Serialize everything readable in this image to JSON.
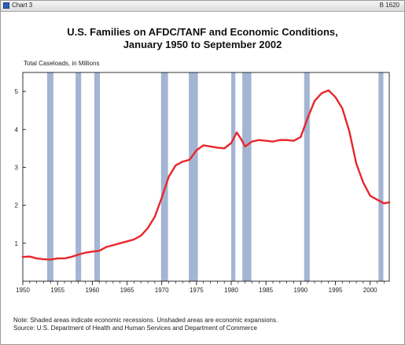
{
  "window": {
    "title": "Chart 3",
    "code": "B 1620"
  },
  "chart_data": {
    "type": "line",
    "title": "U.S. Families on AFDC/TANF and Economic Conditions,",
    "subtitle": "January 1950 to September 2002",
    "ylabel": "Total Caseloads, in Millions",
    "xlabel": "",
    "xlim": [
      1950,
      2002.75
    ],
    "ylim": [
      0,
      5.5
    ],
    "x_ticks": [
      "1950",
      "1955",
      "1960",
      "1965",
      "1970",
      "1975",
      "1980",
      "1985",
      "1990",
      "1995",
      "2000"
    ],
    "y_ticks": [
      "1",
      "2",
      "3",
      "4",
      "5"
    ],
    "grid": false,
    "line_color": "#e8262b",
    "recession_color": "#a3b5d3",
    "recessions": [
      [
        1953.5,
        1954.4
      ],
      [
        1957.6,
        1958.4
      ],
      [
        1960.3,
        1961.1
      ],
      [
        1969.9,
        1970.9
      ],
      [
        1973.9,
        1975.2
      ],
      [
        1980.0,
        1980.6
      ],
      [
        1981.6,
        1982.9
      ],
      [
        1990.5,
        1991.3
      ],
      [
        2001.2,
        2001.9
      ]
    ],
    "series": [
      {
        "values": [
          [
            1950.0,
            0.64
          ],
          [
            1951.0,
            0.65
          ],
          [
            1952.0,
            0.6
          ],
          [
            1953.0,
            0.58
          ],
          [
            1954.0,
            0.57
          ],
          [
            1955.0,
            0.6
          ],
          [
            1956.0,
            0.6
          ],
          [
            1957.0,
            0.64
          ],
          [
            1958.0,
            0.7
          ],
          [
            1959.0,
            0.75
          ],
          [
            1960.0,
            0.78
          ],
          [
            1961.0,
            0.8
          ],
          [
            1962.0,
            0.9
          ],
          [
            1963.0,
            0.95
          ],
          [
            1964.0,
            1.0
          ],
          [
            1965.0,
            1.05
          ],
          [
            1966.0,
            1.1
          ],
          [
            1967.0,
            1.2
          ],
          [
            1968.0,
            1.4
          ],
          [
            1969.0,
            1.7
          ],
          [
            1970.0,
            2.2
          ],
          [
            1971.0,
            2.75
          ],
          [
            1972.0,
            3.05
          ],
          [
            1973.0,
            3.15
          ],
          [
            1974.0,
            3.2
          ],
          [
            1975.0,
            3.45
          ],
          [
            1976.0,
            3.58
          ],
          [
            1977.0,
            3.55
          ],
          [
            1978.0,
            3.52
          ],
          [
            1979.0,
            3.5
          ],
          [
            1980.0,
            3.64
          ],
          [
            1980.8,
            3.92
          ],
          [
            1981.5,
            3.72
          ],
          [
            1982.0,
            3.55
          ],
          [
            1983.0,
            3.68
          ],
          [
            1984.0,
            3.72
          ],
          [
            1985.0,
            3.7
          ],
          [
            1986.0,
            3.68
          ],
          [
            1987.0,
            3.72
          ],
          [
            1988.0,
            3.72
          ],
          [
            1989.0,
            3.7
          ],
          [
            1990.0,
            3.8
          ],
          [
            1991.0,
            4.3
          ],
          [
            1992.0,
            4.75
          ],
          [
            1993.0,
            4.95
          ],
          [
            1994.0,
            5.03
          ],
          [
            1995.0,
            4.85
          ],
          [
            1996.0,
            4.55
          ],
          [
            1997.0,
            3.95
          ],
          [
            1998.0,
            3.1
          ],
          [
            1999.0,
            2.6
          ],
          [
            2000.0,
            2.25
          ],
          [
            2001.0,
            2.15
          ],
          [
            2002.0,
            2.05
          ],
          [
            2002.75,
            2.08
          ]
        ]
      }
    ]
  },
  "notes": {
    "line1": "Note: Shaded areas indicate economic recessions. Unshaded areas are economic expansions.",
    "line2": "Source: U.S. Department of Health and Human Services and Department of Commerce"
  }
}
